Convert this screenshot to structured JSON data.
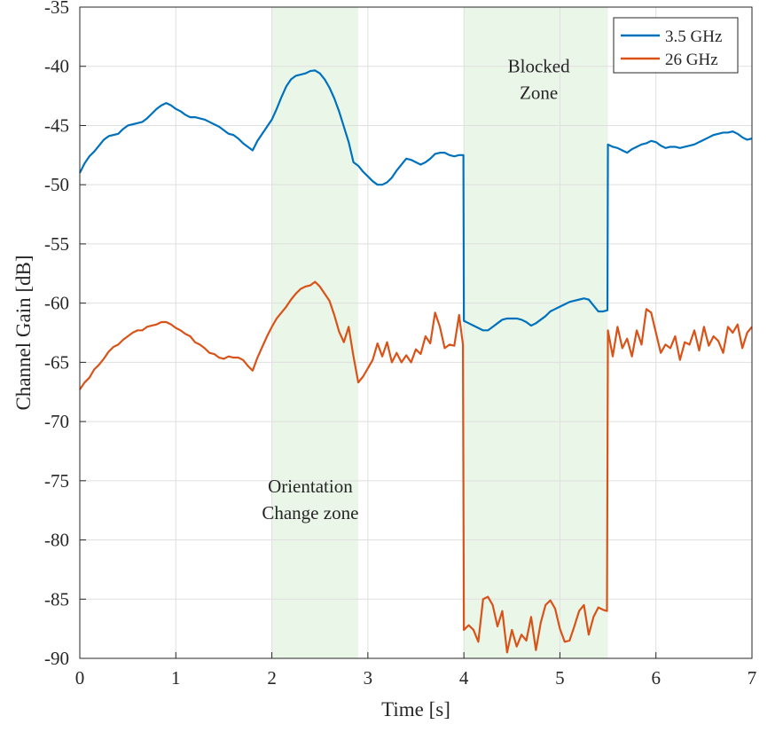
{
  "chart_data": {
    "type": "line",
    "xlabel": "Time [s]",
    "ylabel": "Channel Gain [dB]",
    "xlim": [
      0,
      7
    ],
    "ylim": [
      -90,
      -35
    ],
    "xticks": [
      0,
      1,
      2,
      3,
      4,
      5,
      6,
      7
    ],
    "yticks": [
      -35,
      -40,
      -45,
      -50,
      -55,
      -60,
      -65,
      -70,
      -75,
      -80,
      -85,
      -90
    ],
    "grid": true,
    "legend_position": "top-right",
    "regions": [
      {
        "label_lines": [
          "Orientation",
          "Change zone"
        ],
        "x_start": 2.0,
        "x_end": 2.9,
        "label_x": 2.4,
        "label_y": -76,
        "color": "#eaf6e8"
      },
      {
        "label_lines": [
          "Blocked",
          "Zone"
        ],
        "x_start": 4.0,
        "x_end": 5.5,
        "label_x": 4.78,
        "label_y": -40.5,
        "color": "#eaf6e8"
      }
    ],
    "series": [
      {
        "name": "3.5 GHz",
        "color": "#0072bd",
        "points": [
          [
            0.0,
            -49.0
          ],
          [
            0.05,
            -48.2
          ],
          [
            0.1,
            -47.6
          ],
          [
            0.15,
            -47.2
          ],
          [
            0.2,
            -46.7
          ],
          [
            0.25,
            -46.2
          ],
          [
            0.3,
            -45.9
          ],
          [
            0.35,
            -45.8
          ],
          [
            0.4,
            -45.7
          ],
          [
            0.45,
            -45.3
          ],
          [
            0.5,
            -45.0
          ],
          [
            0.55,
            -44.9
          ],
          [
            0.6,
            -44.8
          ],
          [
            0.65,
            -44.7
          ],
          [
            0.7,
            -44.4
          ],
          [
            0.75,
            -44.0
          ],
          [
            0.8,
            -43.6
          ],
          [
            0.85,
            -43.3
          ],
          [
            0.9,
            -43.1
          ],
          [
            0.95,
            -43.3
          ],
          [
            1.0,
            -43.6
          ],
          [
            1.05,
            -43.8
          ],
          [
            1.1,
            -44.1
          ],
          [
            1.15,
            -44.3
          ],
          [
            1.2,
            -44.3
          ],
          [
            1.25,
            -44.4
          ],
          [
            1.3,
            -44.5
          ],
          [
            1.35,
            -44.7
          ],
          [
            1.4,
            -44.9
          ],
          [
            1.45,
            -45.1
          ],
          [
            1.5,
            -45.4
          ],
          [
            1.55,
            -45.7
          ],
          [
            1.6,
            -45.8
          ],
          [
            1.65,
            -46.1
          ],
          [
            1.7,
            -46.5
          ],
          [
            1.75,
            -46.8
          ],
          [
            1.8,
            -47.1
          ],
          [
            1.85,
            -46.3
          ],
          [
            1.9,
            -45.7
          ],
          [
            1.95,
            -45.1
          ],
          [
            2.0,
            -44.5
          ],
          [
            2.05,
            -43.6
          ],
          [
            2.1,
            -42.6
          ],
          [
            2.15,
            -41.7
          ],
          [
            2.2,
            -41.1
          ],
          [
            2.25,
            -40.8
          ],
          [
            2.3,
            -40.7
          ],
          [
            2.35,
            -40.6
          ],
          [
            2.4,
            -40.4
          ],
          [
            2.45,
            -40.35
          ],
          [
            2.5,
            -40.6
          ],
          [
            2.55,
            -41.1
          ],
          [
            2.6,
            -41.8
          ],
          [
            2.65,
            -42.7
          ],
          [
            2.7,
            -43.8
          ],
          [
            2.75,
            -45.1
          ],
          [
            2.8,
            -46.4
          ],
          [
            2.85,
            -48.1
          ],
          [
            2.9,
            -48.4
          ],
          [
            2.95,
            -48.9
          ],
          [
            3.0,
            -49.3
          ],
          [
            3.05,
            -49.7
          ],
          [
            3.1,
            -50.0
          ],
          [
            3.15,
            -50.0
          ],
          [
            3.2,
            -49.8
          ],
          [
            3.25,
            -49.4
          ],
          [
            3.3,
            -48.8
          ],
          [
            3.35,
            -48.3
          ],
          [
            3.4,
            -47.8
          ],
          [
            3.45,
            -47.9
          ],
          [
            3.5,
            -48.1
          ],
          [
            3.55,
            -48.3
          ],
          [
            3.6,
            -48.1
          ],
          [
            3.65,
            -47.8
          ],
          [
            3.7,
            -47.4
          ],
          [
            3.75,
            -47.3
          ],
          [
            3.8,
            -47.3
          ],
          [
            3.85,
            -47.5
          ],
          [
            3.9,
            -47.6
          ],
          [
            3.95,
            -47.5
          ],
          [
            3.995,
            -47.5
          ],
          [
            4.0,
            -61.5
          ],
          [
            4.05,
            -61.7
          ],
          [
            4.1,
            -61.9
          ],
          [
            4.15,
            -62.1
          ],
          [
            4.2,
            -62.3
          ],
          [
            4.25,
            -62.3
          ],
          [
            4.3,
            -62.0
          ],
          [
            4.35,
            -61.7
          ],
          [
            4.4,
            -61.4
          ],
          [
            4.45,
            -61.3
          ],
          [
            4.5,
            -61.3
          ],
          [
            4.55,
            -61.3
          ],
          [
            4.6,
            -61.4
          ],
          [
            4.65,
            -61.6
          ],
          [
            4.7,
            -61.9
          ],
          [
            4.75,
            -61.7
          ],
          [
            4.8,
            -61.4
          ],
          [
            4.85,
            -61.1
          ],
          [
            4.9,
            -60.7
          ],
          [
            4.95,
            -60.5
          ],
          [
            5.0,
            -60.3
          ],
          [
            5.05,
            -60.1
          ],
          [
            5.1,
            -59.9
          ],
          [
            5.15,
            -59.8
          ],
          [
            5.2,
            -59.7
          ],
          [
            5.25,
            -59.6
          ],
          [
            5.3,
            -59.7
          ],
          [
            5.35,
            -60.2
          ],
          [
            5.4,
            -60.7
          ],
          [
            5.45,
            -60.7
          ],
          [
            5.495,
            -60.6
          ],
          [
            5.5,
            -46.6
          ],
          [
            5.55,
            -46.8
          ],
          [
            5.6,
            -46.9
          ],
          [
            5.65,
            -47.1
          ],
          [
            5.7,
            -47.3
          ],
          [
            5.75,
            -47.0
          ],
          [
            5.8,
            -46.8
          ],
          [
            5.85,
            -46.6
          ],
          [
            5.9,
            -46.5
          ],
          [
            5.95,
            -46.3
          ],
          [
            6.0,
            -46.4
          ],
          [
            6.05,
            -46.7
          ],
          [
            6.1,
            -46.9
          ],
          [
            6.15,
            -46.8
          ],
          [
            6.2,
            -46.8
          ],
          [
            6.25,
            -46.9
          ],
          [
            6.3,
            -46.8
          ],
          [
            6.35,
            -46.7
          ],
          [
            6.4,
            -46.6
          ],
          [
            6.45,
            -46.4
          ],
          [
            6.5,
            -46.2
          ],
          [
            6.55,
            -46.0
          ],
          [
            6.6,
            -45.8
          ],
          [
            6.65,
            -45.7
          ],
          [
            6.7,
            -45.6
          ],
          [
            6.75,
            -45.6
          ],
          [
            6.8,
            -45.5
          ],
          [
            6.85,
            -45.7
          ],
          [
            6.9,
            -46.0
          ],
          [
            6.95,
            -46.2
          ],
          [
            7.0,
            -46.1
          ]
        ]
      },
      {
        "name": "26 GHz",
        "color": "#d95319",
        "points": [
          [
            0.0,
            -67.3
          ],
          [
            0.05,
            -66.7
          ],
          [
            0.1,
            -66.3
          ],
          [
            0.15,
            -65.6
          ],
          [
            0.2,
            -65.2
          ],
          [
            0.25,
            -64.7
          ],
          [
            0.3,
            -64.1
          ],
          [
            0.35,
            -63.7
          ],
          [
            0.4,
            -63.5
          ],
          [
            0.45,
            -63.1
          ],
          [
            0.5,
            -62.8
          ],
          [
            0.55,
            -62.5
          ],
          [
            0.6,
            -62.3
          ],
          [
            0.65,
            -62.3
          ],
          [
            0.7,
            -62.0
          ],
          [
            0.75,
            -61.9
          ],
          [
            0.8,
            -61.8
          ],
          [
            0.85,
            -61.6
          ],
          [
            0.9,
            -61.6
          ],
          [
            0.95,
            -61.8
          ],
          [
            1.0,
            -62.1
          ],
          [
            1.05,
            -62.3
          ],
          [
            1.1,
            -62.6
          ],
          [
            1.15,
            -62.8
          ],
          [
            1.2,
            -63.3
          ],
          [
            1.25,
            -63.5
          ],
          [
            1.3,
            -63.8
          ],
          [
            1.35,
            -64.2
          ],
          [
            1.4,
            -64.3
          ],
          [
            1.45,
            -64.6
          ],
          [
            1.5,
            -64.7
          ],
          [
            1.55,
            -64.5
          ],
          [
            1.6,
            -64.6
          ],
          [
            1.65,
            -64.6
          ],
          [
            1.7,
            -64.8
          ],
          [
            1.75,
            -65.3
          ],
          [
            1.8,
            -65.7
          ],
          [
            1.85,
            -64.6
          ],
          [
            1.9,
            -63.7
          ],
          [
            1.95,
            -62.8
          ],
          [
            2.0,
            -62.0
          ],
          [
            2.05,
            -61.3
          ],
          [
            2.1,
            -60.8
          ],
          [
            2.15,
            -60.3
          ],
          [
            2.2,
            -59.7
          ],
          [
            2.25,
            -59.2
          ],
          [
            2.3,
            -58.8
          ],
          [
            2.35,
            -58.6
          ],
          [
            2.4,
            -58.5
          ],
          [
            2.45,
            -58.2
          ],
          [
            2.5,
            -58.6
          ],
          [
            2.55,
            -59.2
          ],
          [
            2.6,
            -59.8
          ],
          [
            2.65,
            -61.0
          ],
          [
            2.7,
            -62.4
          ],
          [
            2.75,
            -63.3
          ],
          [
            2.8,
            -62.0
          ],
          [
            2.85,
            -64.5
          ],
          [
            2.9,
            -66.7
          ],
          [
            2.95,
            -66.2
          ],
          [
            3.0,
            -65.5
          ],
          [
            3.05,
            -64.8
          ],
          [
            3.1,
            -63.4
          ],
          [
            3.15,
            -64.5
          ],
          [
            3.2,
            -63.3
          ],
          [
            3.25,
            -65.0
          ],
          [
            3.3,
            -64.2
          ],
          [
            3.35,
            -65.0
          ],
          [
            3.4,
            -64.4
          ],
          [
            3.45,
            -65.0
          ],
          [
            3.5,
            -63.9
          ],
          [
            3.55,
            -64.3
          ],
          [
            3.6,
            -62.8
          ],
          [
            3.65,
            -63.4
          ],
          [
            3.7,
            -60.8
          ],
          [
            3.75,
            -62.0
          ],
          [
            3.8,
            -63.8
          ],
          [
            3.85,
            -63.5
          ],
          [
            3.9,
            -63.6
          ],
          [
            3.95,
            -61.0
          ],
          [
            3.99,
            -63.5
          ],
          [
            4.0,
            -87.6
          ],
          [
            4.05,
            -87.2
          ],
          [
            4.1,
            -87.6
          ],
          [
            4.15,
            -88.6
          ],
          [
            4.2,
            -85.0
          ],
          [
            4.25,
            -84.8
          ],
          [
            4.3,
            -85.5
          ],
          [
            4.35,
            -87.3
          ],
          [
            4.4,
            -86.0
          ],
          [
            4.45,
            -89.5
          ],
          [
            4.5,
            -87.6
          ],
          [
            4.55,
            -89.0
          ],
          [
            4.6,
            -88.0
          ],
          [
            4.65,
            -88.5
          ],
          [
            4.7,
            -86.5
          ],
          [
            4.75,
            -89.3
          ],
          [
            4.8,
            -87.0
          ],
          [
            4.85,
            -85.5
          ],
          [
            4.9,
            -85.1
          ],
          [
            4.95,
            -85.8
          ],
          [
            5.0,
            -87.5
          ],
          [
            5.05,
            -88.6
          ],
          [
            5.1,
            -88.5
          ],
          [
            5.15,
            -87.3
          ],
          [
            5.2,
            -86.0
          ],
          [
            5.25,
            -85.5
          ],
          [
            5.3,
            -88.0
          ],
          [
            5.35,
            -86.5
          ],
          [
            5.4,
            -85.7
          ],
          [
            5.45,
            -85.9
          ],
          [
            5.49,
            -86.0
          ],
          [
            5.5,
            -62.3
          ],
          [
            5.55,
            -64.5
          ],
          [
            5.6,
            -62.0
          ],
          [
            5.65,
            -63.8
          ],
          [
            5.7,
            -63.0
          ],
          [
            5.75,
            -64.5
          ],
          [
            5.8,
            -62.3
          ],
          [
            5.85,
            -63.5
          ],
          [
            5.9,
            -60.5
          ],
          [
            5.95,
            -60.8
          ],
          [
            6.0,
            -62.5
          ],
          [
            6.05,
            -64.2
          ],
          [
            6.1,
            -63.5
          ],
          [
            6.15,
            -63.8
          ],
          [
            6.2,
            -62.8
          ],
          [
            6.25,
            -64.8
          ],
          [
            6.3,
            -63.3
          ],
          [
            6.35,
            -63.5
          ],
          [
            6.4,
            -62.3
          ],
          [
            6.45,
            -64.0
          ],
          [
            6.5,
            -62.0
          ],
          [
            6.55,
            -63.6
          ],
          [
            6.6,
            -62.8
          ],
          [
            6.65,
            -63.2
          ],
          [
            6.7,
            -64.2
          ],
          [
            6.75,
            -62.0
          ],
          [
            6.8,
            -62.5
          ],
          [
            6.85,
            -61.8
          ],
          [
            6.9,
            -63.8
          ],
          [
            6.95,
            -62.5
          ],
          [
            7.0,
            -62.0
          ]
        ]
      }
    ]
  }
}
